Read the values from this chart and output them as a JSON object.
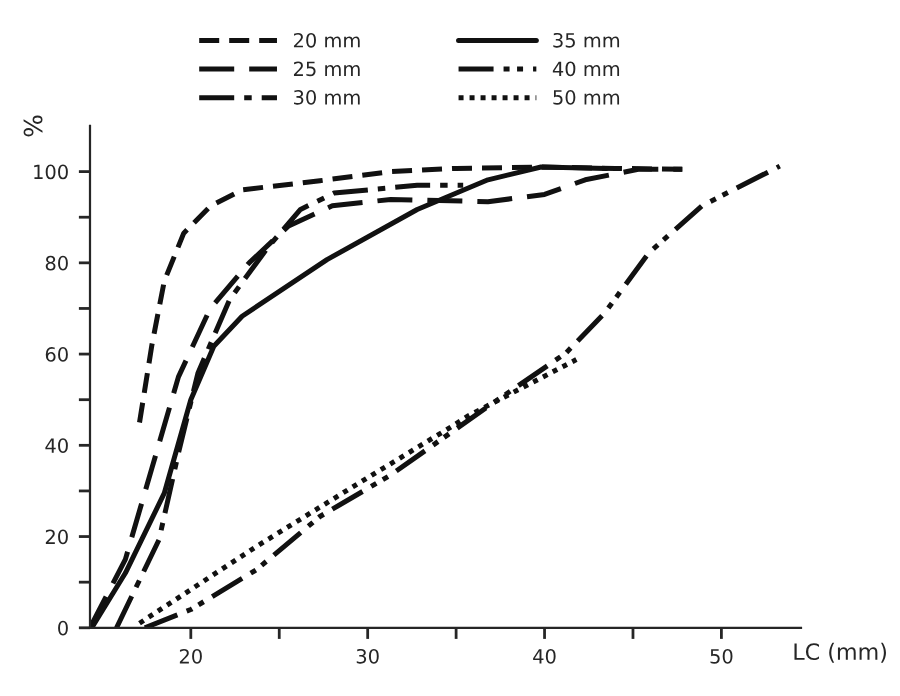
{
  "chart_data": {
    "type": "line",
    "xlabel": "LC (mm)",
    "ylabel": "%",
    "xlim": [
      14.3,
      54.5
    ],
    "ylim": [
      0,
      110
    ],
    "xticks": [
      20,
      {
        "value": 25,
        "label": null
      },
      30,
      {
        "value": 35,
        "label": null
      },
      40,
      {
        "value": 45,
        "label": null
      },
      50
    ],
    "yticks": [
      0,
      {
        "value": 10,
        "label": null
      },
      20,
      {
        "value": 30,
        "label": null
      },
      40,
      {
        "value": 50,
        "label": null
      },
      60,
      {
        "value": 70,
        "label": null
      },
      80,
      {
        "value": 90,
        "label": null
      },
      100
    ],
    "grid": false,
    "legend": "top",
    "marker": "none",
    "series": [
      {
        "name": "20 mm",
        "color": "#111111",
        "line_style": "dashed",
        "x": [
          17.1,
          17.8,
          18.5,
          19.6,
          21.1,
          22.9,
          27.3,
          31.3,
          35,
          39.8,
          44,
          48
        ],
        "values": [
          45,
          62,
          76,
          86.5,
          92.4,
          96,
          98,
          100,
          100.7,
          101,
          100.7,
          100.5
        ]
      },
      {
        "name": "25 mm",
        "color": "#111111",
        "line_style": "longdash",
        "x": [
          14.3,
          16.3,
          17.8,
          19.3,
          21.1,
          23.3,
          25.5,
          28,
          31.3,
          36.8,
          40,
          42.3,
          45.3,
          47.8
        ],
        "values": [
          0,
          15,
          35,
          55,
          70,
          80,
          88,
          92.5,
          93.9,
          93.4,
          95,
          98.2,
          100.5,
          100.5
        ]
      },
      {
        "name": "30 mm",
        "color": "#111111",
        "line_style": "dashdot",
        "x": [
          15.8,
          18.2,
          19.3,
          20.4,
          22.2,
          24.4,
          26.2,
          28.1,
          32.8,
          35.4
        ],
        "values": [
          0,
          19.3,
          38.3,
          55.8,
          72,
          83.6,
          91.7,
          95.3,
          97,
          97
        ]
      },
      {
        "name": "35 mm",
        "color": "#111111",
        "line_style": "solid",
        "x": [
          14.4,
          16.3,
          18.5,
          20,
          21.3,
          22.9,
          27.7,
          32.8,
          36.8,
          39.8,
          43.5
        ],
        "values": [
          0,
          12,
          29.5,
          50,
          61.7,
          68.3,
          80.7,
          91.7,
          98.2,
          101,
          100.7
        ]
      },
      {
        "name": "40 mm",
        "color": "#111111",
        "line_style": "dashdotdot",
        "x": [
          17.4,
          20,
          23.7,
          27.3,
          31.3,
          36.8,
          41.2,
          43.4,
          45.9,
          48.9,
          53.3
        ],
        "values": [
          0,
          4,
          12.7,
          24.4,
          33.5,
          48.5,
          60.2,
          69,
          82.2,
          92.5,
          101.2
        ]
      },
      {
        "name": "50 mm",
        "color": "#111111",
        "line_style": "dotted",
        "x": [
          17.1,
          23.7,
          29.2,
          34.7,
          35.7,
          41.8
        ],
        "values": [
          1,
          17.8,
          31,
          44,
          46.5,
          58.8
        ]
      }
    ]
  }
}
